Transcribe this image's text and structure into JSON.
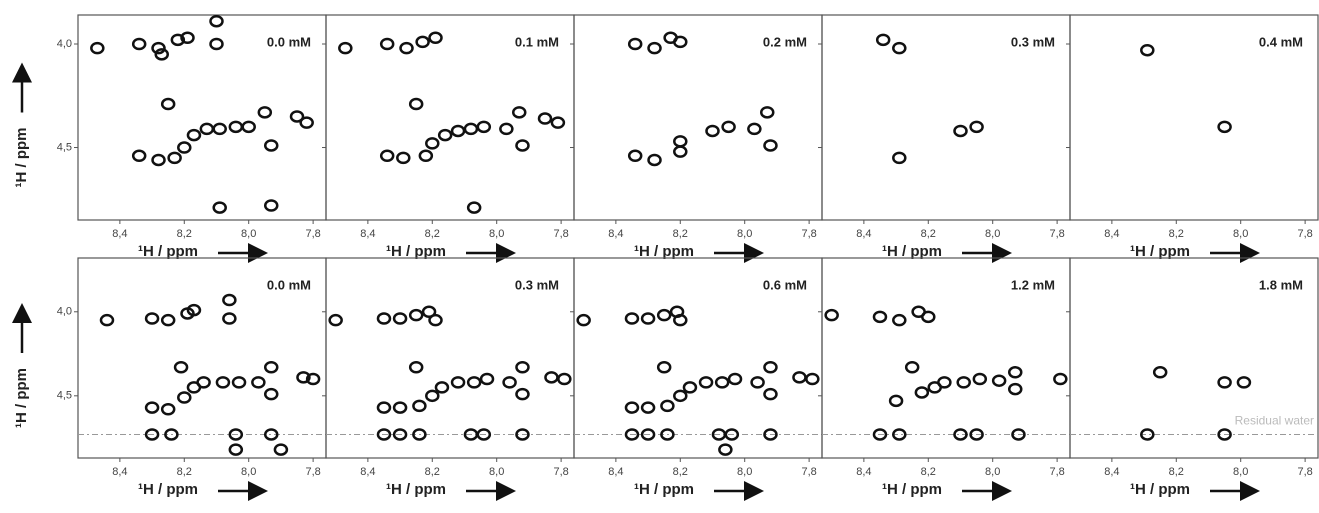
{
  "chart_data": [
    {
      "type": "scatter",
      "title": "0.0 mM",
      "xlabel": "¹H / ppm",
      "ylabel": "¹H / ppm",
      "color": "#111111",
      "xlim": [
        8.53,
        7.76
      ],
      "ylim": [
        3.86,
        4.85
      ],
      "xticks": [
        {
          "value": 8.4,
          "label": "8,4"
        },
        {
          "value": 8.2,
          "label": "8,2"
        },
        {
          "value": 8.0,
          "label": "8,0"
        },
        {
          "value": 7.8,
          "label": "7,8"
        }
      ],
      "yticks": [
        {
          "value": 4.0,
          "label": "4,0"
        },
        {
          "value": 4.5,
          "label": "4,5"
        }
      ],
      "x": [
        8.47,
        8.34,
        8.28,
        8.27,
        8.22,
        8.19,
        8.1,
        8.1,
        8.25,
        8.34,
        8.28,
        8.23,
        8.2,
        8.17,
        8.13,
        8.09,
        8.04,
        8.0,
        7.95,
        7.93,
        7.85,
        7.82,
        8.09,
        7.93
      ],
      "y": [
        4.02,
        4.0,
        4.02,
        4.05,
        3.98,
        3.97,
        3.89,
        4.0,
        4.29,
        4.54,
        4.56,
        4.55,
        4.5,
        4.44,
        4.41,
        4.41,
        4.4,
        4.4,
        4.33,
        4.49,
        4.35,
        4.38,
        4.79,
        4.78
      ]
    },
    {
      "type": "scatter",
      "title": "0.1 mM",
      "xlabel": "¹H / ppm",
      "color": "#111111",
      "xlim": [
        8.53,
        7.76
      ],
      "ylim": [
        3.86,
        4.85
      ],
      "xticks": [
        {
          "value": 8.4,
          "label": "8,4"
        },
        {
          "value": 8.2,
          "label": "8,2"
        },
        {
          "value": 8.0,
          "label": "8,0"
        },
        {
          "value": 7.8,
          "label": "7,8"
        }
      ],
      "yticks": [
        {
          "value": 4.0,
          "label": "4,0"
        },
        {
          "value": 4.5,
          "label": "4,5"
        }
      ],
      "x": [
        8.47,
        8.34,
        8.28,
        8.23,
        8.19,
        8.25,
        8.34,
        8.29,
        8.22,
        8.2,
        8.16,
        8.12,
        8.08,
        8.04,
        7.97,
        7.93,
        7.92,
        7.85,
        7.81,
        8.07
      ],
      "y": [
        4.02,
        4.0,
        4.02,
        3.99,
        3.97,
        4.29,
        4.54,
        4.55,
        4.54,
        4.48,
        4.44,
        4.42,
        4.41,
        4.4,
        4.41,
        4.33,
        4.49,
        4.36,
        4.38,
        4.79
      ]
    },
    {
      "type": "scatter",
      "title": "0.2 mM",
      "xlabel": "¹H / ppm",
      "color": "#111111",
      "xlim": [
        8.53,
        7.76
      ],
      "ylim": [
        3.86,
        4.85
      ],
      "xticks": [
        {
          "value": 8.4,
          "label": "8,4"
        },
        {
          "value": 8.2,
          "label": "8,2"
        },
        {
          "value": 8.0,
          "label": "8,0"
        },
        {
          "value": 7.8,
          "label": "7,8"
        }
      ],
      "yticks": [
        {
          "value": 4.0,
          "label": "4,0"
        },
        {
          "value": 4.5,
          "label": "4,5"
        }
      ],
      "x": [
        8.34,
        8.28,
        8.23,
        8.2,
        8.28,
        8.34,
        8.2,
        8.2,
        8.1,
        8.05,
        7.97,
        7.93,
        7.92
      ],
      "y": [
        4.0,
        4.02,
        3.97,
        3.99,
        4.56,
        4.54,
        4.47,
        4.52,
        4.42,
        4.4,
        4.41,
        4.33,
        4.49
      ]
    },
    {
      "type": "scatter",
      "title": "0.3 mM",
      "xlabel": "¹H / ppm",
      "color": "#111111",
      "xlim": [
        8.53,
        7.76
      ],
      "ylim": [
        3.86,
        4.85
      ],
      "xticks": [
        {
          "value": 8.4,
          "label": "8,4"
        },
        {
          "value": 8.2,
          "label": "8,2"
        },
        {
          "value": 8.0,
          "label": "8,0"
        },
        {
          "value": 7.8,
          "label": "7,8"
        }
      ],
      "yticks": [
        {
          "value": 4.0,
          "label": "4,0"
        },
        {
          "value": 4.5,
          "label": "4,5"
        }
      ],
      "x": [
        8.34,
        8.29,
        8.05,
        8.1,
        8.29
      ],
      "y": [
        3.98,
        4.02,
        4.4,
        4.42,
        4.55
      ]
    },
    {
      "type": "scatter",
      "title": "0.4 mM",
      "xlabel": "¹H / ppm",
      "color": "#111111",
      "xlim": [
        8.53,
        7.76
      ],
      "ylim": [
        3.86,
        4.85
      ],
      "xticks": [
        {
          "value": 8.4,
          "label": "8,4"
        },
        {
          "value": 8.2,
          "label": "8,2"
        },
        {
          "value": 8.0,
          "label": "8,0"
        },
        {
          "value": 7.8,
          "label": "7,8"
        }
      ],
      "yticks": [
        {
          "value": 4.0,
          "label": "4,0"
        },
        {
          "value": 4.5,
          "label": "4,5"
        }
      ],
      "x": [
        8.29,
        8.05
      ],
      "y": [
        4.03,
        4.4
      ]
    },
    {
      "type": "scatter",
      "title": "0.0 mM",
      "xlabel": "¹H / ppm",
      "ylabel": "¹H / ppm",
      "color": "#111111",
      "xlim": [
        8.53,
        7.76
      ],
      "ylim": [
        3.68,
        4.87
      ],
      "hline": 4.73,
      "xticks": [
        {
          "value": 8.4,
          "label": "8,4"
        },
        {
          "value": 8.2,
          "label": "8,2"
        },
        {
          "value": 8.0,
          "label": "8,0"
        },
        {
          "value": 7.8,
          "label": "7,8"
        }
      ],
      "yticks": [
        {
          "value": 4.0,
          "label": "4,0"
        },
        {
          "value": 4.5,
          "label": "4,5"
        }
      ],
      "x": [
        8.44,
        8.3,
        8.25,
        8.19,
        8.17,
        8.06,
        8.06,
        8.21,
        8.3,
        8.25,
        8.2,
        8.17,
        8.14,
        8.08,
        8.03,
        7.97,
        7.93,
        7.93,
        7.83,
        7.8,
        8.3,
        8.24,
        8.04,
        8.04,
        7.93,
        7.9
      ],
      "y": [
        4.05,
        4.04,
        4.05,
        4.01,
        3.99,
        3.93,
        4.04,
        4.33,
        4.57,
        4.58,
        4.51,
        4.45,
        4.42,
        4.42,
        4.42,
        4.42,
        4.33,
        4.49,
        4.39,
        4.4,
        4.73,
        4.73,
        4.73,
        4.82,
        4.73,
        4.82
      ]
    },
    {
      "type": "scatter",
      "title": "0.3 mM",
      "xlabel": "¹H / ppm",
      "color": "#111111",
      "xlim": [
        8.53,
        7.76
      ],
      "ylim": [
        3.68,
        4.87
      ],
      "hline": 4.73,
      "xticks": [
        {
          "value": 8.4,
          "label": "8,4"
        },
        {
          "value": 8.2,
          "label": "8,2"
        },
        {
          "value": 8.0,
          "label": "8,0"
        },
        {
          "value": 7.8,
          "label": "7,8"
        }
      ],
      "yticks": [
        {
          "value": 4.0,
          "label": "4,0"
        },
        {
          "value": 4.5,
          "label": "4,5"
        }
      ],
      "x": [
        8.5,
        8.35,
        8.3,
        8.25,
        8.21,
        8.19,
        8.25,
        8.35,
        8.3,
        8.24,
        8.2,
        8.17,
        8.12,
        8.07,
        8.03,
        7.96,
        7.92,
        7.92,
        7.83,
        7.79,
        8.35,
        8.3,
        8.24,
        8.08,
        8.04,
        7.92
      ],
      "y": [
        4.05,
        4.04,
        4.04,
        4.02,
        4.0,
        4.05,
        4.33,
        4.57,
        4.57,
        4.56,
        4.5,
        4.45,
        4.42,
        4.42,
        4.4,
        4.42,
        4.33,
        4.49,
        4.39,
        4.4,
        4.73,
        4.73,
        4.73,
        4.73,
        4.73,
        4.73
      ]
    },
    {
      "type": "scatter",
      "title": "0.6 mM",
      "xlabel": "¹H / ppm",
      "color": "#111111",
      "xlim": [
        8.53,
        7.76
      ],
      "ylim": [
        3.68,
        4.87
      ],
      "hline": 4.73,
      "xticks": [
        {
          "value": 8.4,
          "label": "8,4"
        },
        {
          "value": 8.2,
          "label": "8,2"
        },
        {
          "value": 8.0,
          "label": "8,0"
        },
        {
          "value": 7.8,
          "label": "7,8"
        }
      ],
      "yticks": [
        {
          "value": 4.0,
          "label": "4,0"
        },
        {
          "value": 4.5,
          "label": "4,5"
        }
      ],
      "x": [
        8.5,
        8.35,
        8.3,
        8.25,
        8.21,
        8.2,
        8.25,
        8.35,
        8.3,
        8.24,
        8.2,
        8.17,
        8.12,
        8.07,
        8.03,
        7.96,
        7.92,
        7.92,
        7.83,
        7.79,
        8.35,
        8.3,
        8.24,
        8.08,
        8.04,
        7.92,
        8.06
      ],
      "y": [
        4.05,
        4.04,
        4.04,
        4.02,
        4.0,
        4.05,
        4.33,
        4.57,
        4.57,
        4.56,
        4.5,
        4.45,
        4.42,
        4.42,
        4.4,
        4.42,
        4.33,
        4.49,
        4.39,
        4.4,
        4.73,
        4.73,
        4.73,
        4.73,
        4.73,
        4.73,
        4.82
      ]
    },
    {
      "type": "scatter",
      "title": "1.2 mM",
      "xlabel": "¹H / ppm",
      "color": "#111111",
      "xlim": [
        8.53,
        7.76
      ],
      "ylim": [
        3.68,
        4.87
      ],
      "hline": 4.73,
      "xticks": [
        {
          "value": 8.4,
          "label": "8,4"
        },
        {
          "value": 8.2,
          "label": "8,2"
        },
        {
          "value": 8.0,
          "label": "8,0"
        },
        {
          "value": 7.8,
          "label": "7,8"
        }
      ],
      "yticks": [
        {
          "value": 4.0,
          "label": "4,0"
        },
        {
          "value": 4.5,
          "label": "4,5"
        }
      ],
      "x": [
        8.5,
        8.35,
        8.29,
        8.23,
        8.2,
        8.25,
        8.3,
        8.22,
        8.18,
        8.15,
        8.09,
        8.04,
        7.98,
        7.93,
        7.93,
        7.79,
        8.35,
        8.29,
        8.1,
        8.05,
        7.92
      ],
      "y": [
        4.02,
        4.03,
        4.05,
        4.0,
        4.03,
        4.33,
        4.53,
        4.48,
        4.45,
        4.42,
        4.42,
        4.4,
        4.41,
        4.36,
        4.46,
        4.4,
        4.73,
        4.73,
        4.73,
        4.73,
        4.73
      ]
    },
    {
      "type": "scatter",
      "title": "1.8 mM",
      "xlabel": "¹H / ppm",
      "color": "#111111",
      "xlim": [
        8.53,
        7.76
      ],
      "ylim": [
        3.68,
        4.87
      ],
      "hline": 4.73,
      "annotation": "Residual water",
      "xticks": [
        {
          "value": 8.4,
          "label": "8,4"
        },
        {
          "value": 8.2,
          "label": "8,2"
        },
        {
          "value": 8.0,
          "label": "8,0"
        },
        {
          "value": 7.8,
          "label": "7,8"
        }
      ],
      "yticks": [
        {
          "value": 4.0,
          "label": "4,0"
        },
        {
          "value": 4.5,
          "label": "4,5"
        }
      ],
      "x": [
        8.25,
        8.05,
        7.99,
        8.29,
        8.05
      ],
      "y": [
        4.36,
        4.42,
        4.42,
        4.73,
        4.73
      ]
    }
  ]
}
